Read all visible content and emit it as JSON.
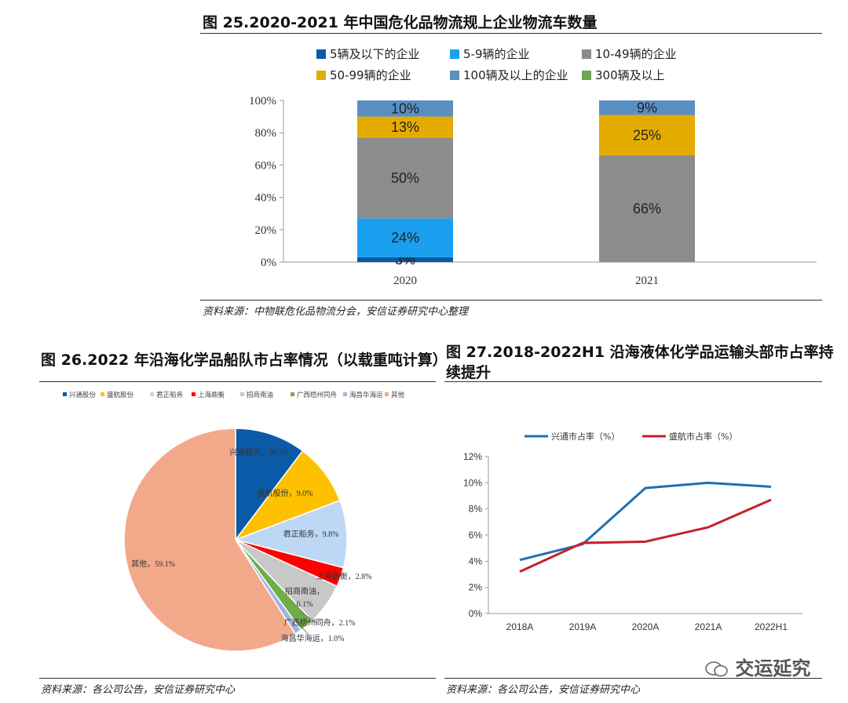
{
  "fig25": {
    "title": "图 25.2020-2021 年中国危化品物流规上企业物流车数量",
    "source": "资料来源：中物联危化品物流分会，安信证券研究中心整理"
  },
  "fig26": {
    "title": "图 26.2022 年沿海化学品船队市占率情况（以载重吨计算）",
    "source": "资料来源：各公司公告，安信证券研究中心"
  },
  "fig27": {
    "title_line1": "图 27.2018-2022H1 沿海液体化学品运输头部市占率持",
    "title_line2": "续提升",
    "source": "资料来源：各公司公告，安信证券研究中心"
  },
  "watermark": "交运延究",
  "colors": {
    "c5": "#0b5aa7",
    "c5_9": "#1aa0ef",
    "c10_49": "#8c8c8c",
    "c50_99": "#e5ac00",
    "c100": "#5a8fc2",
    "c300": "#6aa84f",
    "p_xt": "#0b5aa7",
    "p_sh": "#ffc000",
    "p_jz": "#bcd8f5",
    "p_shd": "#ff0000",
    "p_zs": "#c8c8c8",
    "p_gx": "#70ad47",
    "p_hc": "#9db5e2",
    "p_qt": "#f2a98a",
    "l_xt": "#1f6fb0",
    "l_sh": "#c8202a"
  },
  "chart_data": [
    {
      "id": "fig25",
      "type": "bar",
      "stacked": true,
      "categories": [
        "2020",
        "2021"
      ],
      "series": [
        {
          "name": "5辆及以下的企业",
          "values": [
            3,
            0
          ],
          "labels": [
            "3%",
            ""
          ]
        },
        {
          "name": "5-9辆的企业",
          "values": [
            24,
            0
          ],
          "labels": [
            "24%",
            ""
          ]
        },
        {
          "name": "10-49辆的企业",
          "values": [
            50,
            66
          ],
          "labels": [
            "50%",
            "66%"
          ]
        },
        {
          "name": "50-99辆的企业",
          "values": [
            13,
            25
          ],
          "labels": [
            "13%",
            "25%"
          ]
        },
        {
          "name": "100辆及以上的企业",
          "values": [
            10,
            9
          ],
          "labels": [
            "10%",
            "9%"
          ]
        },
        {
          "name": "300辆及以上",
          "values": [
            0,
            0
          ],
          "labels": [
            "",
            ""
          ]
        }
      ],
      "yticks": [
        "0%",
        "20%",
        "40%",
        "60%",
        "80%",
        "100%"
      ],
      "ylim": [
        0,
        100
      ],
      "legend": "top"
    },
    {
      "id": "fig26",
      "type": "pie",
      "slices": [
        {
          "name": "兴通股份",
          "value": 10.3,
          "label": "兴通股份，10.3%"
        },
        {
          "name": "盛航股份",
          "value": 9.0,
          "label": "盛航股份，9.0%"
        },
        {
          "name": "君正船务",
          "value": 9.8,
          "label": "君正船务，9.8%"
        },
        {
          "name": "上海鼎衡",
          "value": 2.8,
          "label": "上海鼎衡，2.8%"
        },
        {
          "name": "招商南油",
          "value": 6.1,
          "label": "招商南油，6.1%"
        },
        {
          "name": "广西梧州同舟",
          "value": 2.1,
          "label": "广西梧州同舟，2.1%"
        },
        {
          "name": "海昌华海运",
          "value": 1.0,
          "label": "海昌华海运，1.0%"
        },
        {
          "name": "其他",
          "value": 59.1,
          "label": "其他，59.1%"
        }
      ],
      "legend": "top"
    },
    {
      "id": "fig27",
      "type": "line",
      "categories": [
        "2018A",
        "2019A",
        "2020A",
        "2021A",
        "2022H1"
      ],
      "series": [
        {
          "name": "兴通市占率（%）",
          "values": [
            4.1,
            5.3,
            9.6,
            10.0,
            9.7
          ]
        },
        {
          "name": "盛航市占率（%）",
          "values": [
            3.2,
            5.4,
            5.5,
            6.6,
            8.7
          ]
        }
      ],
      "yticks": [
        "0%",
        "2%",
        "4%",
        "6%",
        "8%",
        "10%",
        "12%"
      ],
      "ylim": [
        0,
        12
      ],
      "legend": "top"
    }
  ]
}
